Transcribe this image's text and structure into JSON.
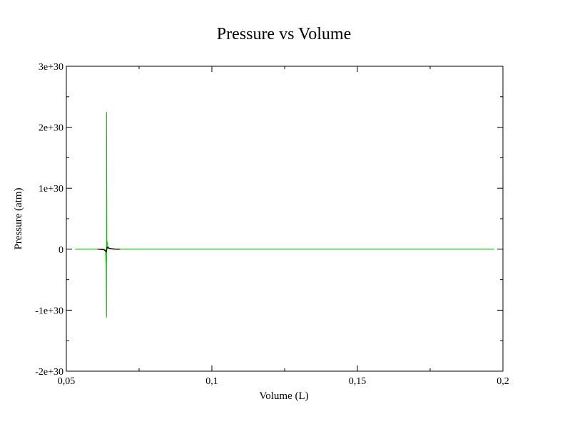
{
  "chart_data": {
    "type": "line",
    "title": "Pressure vs Volume",
    "xlabel": "Volume (L)",
    "ylabel": "Pressure (atm)",
    "xlim": [
      0.05,
      0.2
    ],
    "ylim": [
      -2e+30,
      3e+30
    ],
    "x_ticks": [
      0.05,
      0.1,
      0.15,
      0.2
    ],
    "x_tick_labels": [
      "0,05",
      "0,1",
      "0,15",
      "0,2"
    ],
    "y_ticks": [
      -2e+30,
      -1e+30,
      0,
      1e+30,
      2e+30,
      3e+30
    ],
    "y_tick_labels": [
      "-2e+30",
      "-1e+30",
      "0",
      "1e+30",
      "2e+30",
      "3e+30"
    ],
    "grid": false,
    "legend": "none",
    "series": [
      {
        "color": "#00cc00",
        "points": [
          [
            0.053,
            0
          ],
          [
            0.063,
            0
          ],
          [
            0.0635,
            -5e+28
          ],
          [
            0.0637,
            -2.5e+29
          ],
          [
            0.0638,
            -1.12e+30
          ],
          [
            0.0638,
            2.25e+30
          ],
          [
            0.0639,
            1.5e+29
          ],
          [
            0.0642,
            5e+28
          ],
          [
            0.0648,
            1e+28
          ],
          [
            0.066,
            0
          ],
          [
            0.197,
            0
          ]
        ]
      },
      {
        "color": "#cc0000",
        "points": [
          [
            0.0605,
            0
          ],
          [
            0.0625,
            -5e+27
          ],
          [
            0.0633,
            -1.5e+28
          ],
          [
            0.0637,
            -3e+28
          ],
          [
            0.0641,
            3e+28
          ],
          [
            0.0646,
            1.5e+28
          ],
          [
            0.066,
            5e+27
          ],
          [
            0.068,
            0
          ]
        ]
      },
      {
        "color": "#000000",
        "points": [
          [
            0.061,
            0
          ],
          [
            0.0628,
            -8e+27
          ],
          [
            0.0635,
            -2.5e+28
          ],
          [
            0.0638,
            -4e+28
          ],
          [
            0.064,
            3.5e+28
          ],
          [
            0.0645,
            1.8e+28
          ],
          [
            0.0655,
            8e+27
          ],
          [
            0.0668,
            2e+27
          ],
          [
            0.0685,
            0
          ]
        ]
      }
    ]
  }
}
